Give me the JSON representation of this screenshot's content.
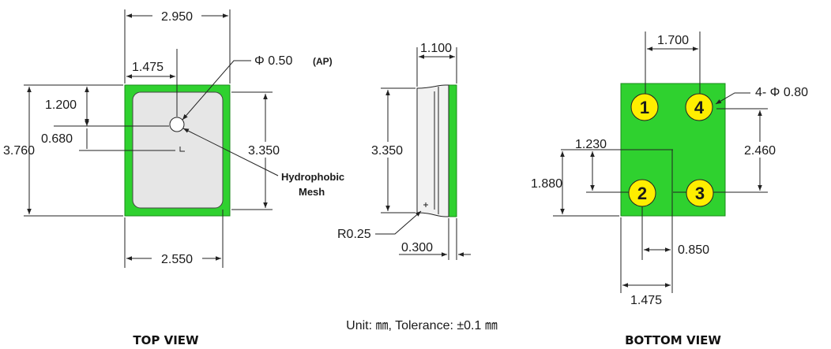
{
  "top_view": {
    "caption": "TOP VIEW",
    "width_outer": "2.950",
    "width_half": "1.475",
    "aperture": "Φ 0.50",
    "aperture_tag": "(AP)",
    "offset_top": "1.200",
    "offset_port": "0.680",
    "height_outer": "3.760",
    "height_inner": "3.350",
    "width_inner": "2.550",
    "mesh_label_line1": "Hydrophobic",
    "mesh_label_line2": "Mesh"
  },
  "side_view": {
    "thickness": "1.100",
    "height": "3.350",
    "radius": "R0.25",
    "lip": "0.300"
  },
  "bottom_view": {
    "caption": "BOTTOM VIEW",
    "pad_pitch_x": "1.700",
    "pad_diameter": "4- Φ 0.80",
    "center_offset": "1.230",
    "pad_pitch_y": "2.460",
    "pad_offset_y": "1.880",
    "pad_offset_x": "0.850",
    "center_x": "1.475",
    "pads": [
      "1",
      "4",
      "2",
      "3"
    ]
  },
  "unit_note": "Unit: ㎜, Tolerance: ±0.1 ㎜",
  "colors": {
    "package_green": "#2fd12f",
    "mesh_gray": "#e6e6e6",
    "pad_yellow": "#ffee00"
  }
}
